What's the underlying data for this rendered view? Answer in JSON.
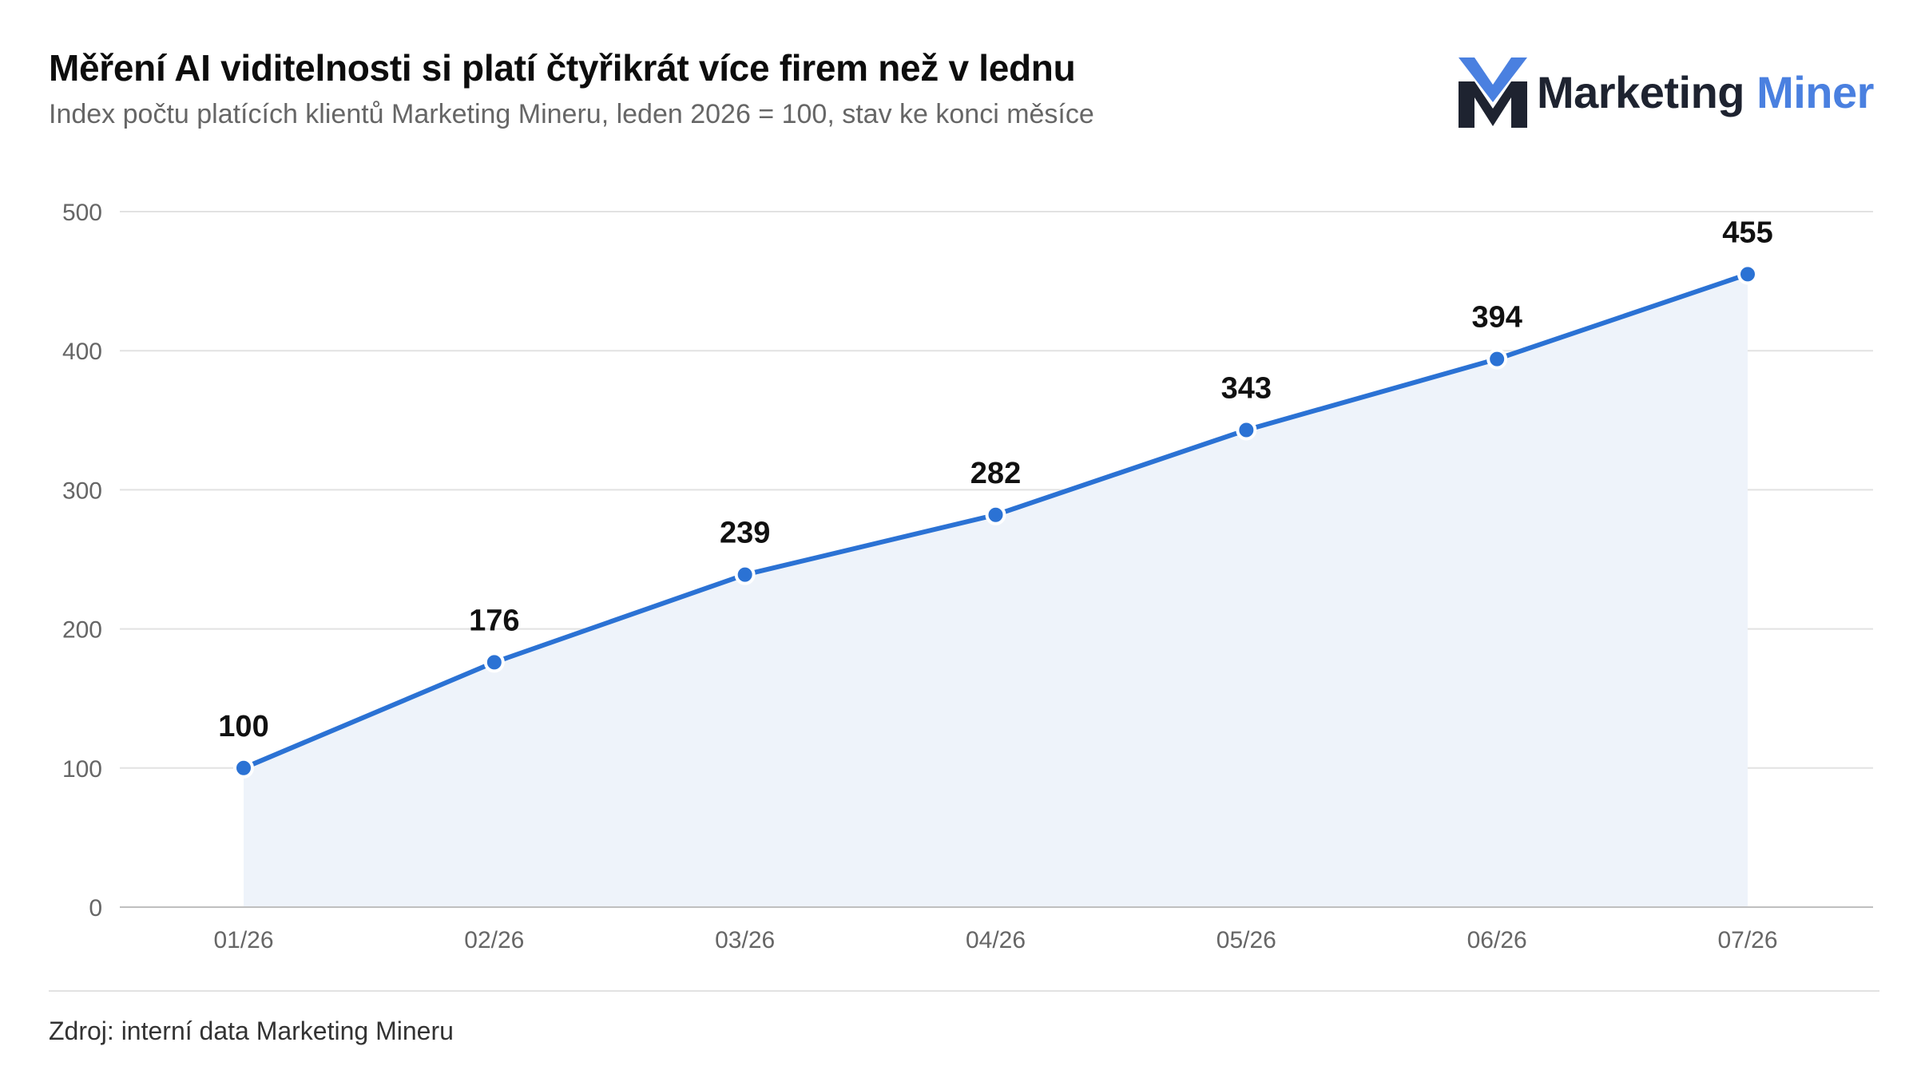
{
  "header": {
    "title": "Měření AI viditelnosti si platí čtyřikrát více firem než v lednu",
    "subtitle": "Index počtu platících klientů Marketing Mineru, leden 2026 = 100, stav ke konci měsíce"
  },
  "logo": {
    "icon": "marketing-miner-m-icon",
    "word1": "Marketing",
    "word2": "Miner"
  },
  "footer": {
    "source": "Zdroj: interní data Marketing Mineru"
  },
  "colors": {
    "line": "#2b72d4",
    "area": "#eef3fa",
    "grid": "#e2e2e2",
    "axis": "#bfbfbf",
    "tick_text": "#666666",
    "label_text": "#111111",
    "logo_dark": "#1e2330",
    "logo_blue": "#4a80e0"
  },
  "chart_data": {
    "type": "area",
    "title": "Měření AI viditelnosti si platí čtyřikrát více firem než v lednu",
    "subtitle": "Index počtu platících klientů Marketing Mineru, leden 2026 = 100, stav ke konci měsíce",
    "categories": [
      "01/26",
      "02/26",
      "03/26",
      "04/26",
      "05/26",
      "06/26",
      "07/26"
    ],
    "values": [
      100,
      176,
      239,
      282,
      343,
      394,
      455
    ],
    "data_labels": [
      "100",
      "176",
      "239",
      "282",
      "343",
      "394",
      "455"
    ],
    "xlabel": "",
    "ylabel": "",
    "ylim": [
      0,
      500
    ],
    "yticks": [
      0,
      100,
      200,
      300,
      400,
      500
    ],
    "ytick_labels": [
      "0",
      "100",
      "200",
      "300",
      "400",
      "500"
    ],
    "grid": true,
    "legend": "none",
    "markers": true
  }
}
